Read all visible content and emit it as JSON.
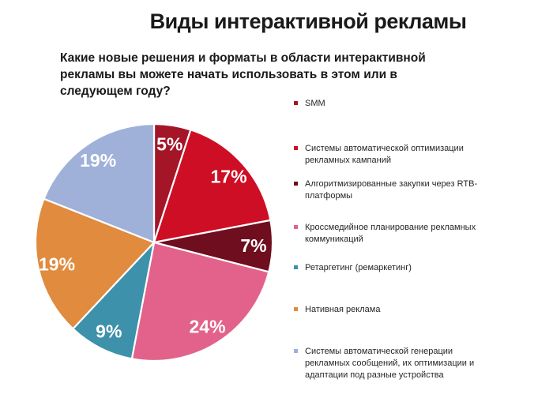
{
  "title": "Виды интерактивной рекламы",
  "question": {
    "lines": [
      "Какие новые решения  и форматы в области интерактивной",
      "рекламы вы можете начать использовать в этом или в",
      "следующем году?"
    ]
  },
  "chart_data": {
    "type": "pie",
    "title": "Виды интерактивной рекламы",
    "start_angle_deg": 0,
    "direction": "clockwise",
    "data_labels": "percent",
    "legend_position": "right",
    "slices": [
      {
        "label": "SMM",
        "value": 5,
        "display": "5%",
        "color": "#A51528",
        "slug": "smm"
      },
      {
        "label": "Системы автоматической оптимизации рекламных кампаний",
        "value": 17,
        "display": "17%",
        "color": "#CE0E24",
        "slug": "auto-optimization"
      },
      {
        "label": "Алгоритмизированные закупки через RTB-платформы",
        "value": 7,
        "display": "7%",
        "color": "#6E0E1F",
        "slug": "rtb-purchases"
      },
      {
        "label": "Кроссмедийное планирование рекламных коммуникаций",
        "value": 24,
        "display": "24%",
        "color": "#E2628B",
        "slug": "crossmedia-planning"
      },
      {
        "label": "Ретаргетинг (ремаркетинг)",
        "value": 9,
        "display": "9%",
        "color": "#3E91AA",
        "slug": "retargeting"
      },
      {
        "label": "Нативная реклама",
        "value": 19,
        "display": "19%",
        "color": "#E08B3E",
        "slug": "native-ads"
      },
      {
        "label": "Системы автоматической генерации рекламных сообщений, их оптимизации и адаптации под разные устройства",
        "value": 19,
        "display": "19%",
        "color": "#9FB1D9",
        "slug": "auto-generation"
      }
    ]
  }
}
